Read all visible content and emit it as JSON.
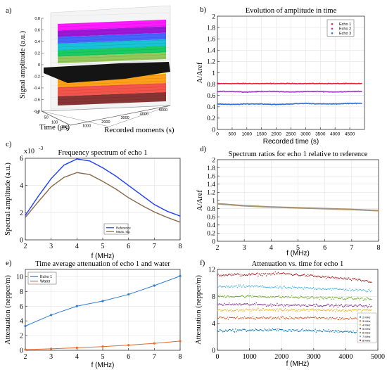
{
  "chart_data": [
    {
      "panel": "a)",
      "type": "surface",
      "title": "",
      "xlabel": "Recorded moments (s)",
      "ylabel": "Time (μs)",
      "zlabel": "Signal amplitude (a.u.)",
      "x_ticks": [
        0,
        1000,
        2000,
        3000,
        4000,
        5000
      ],
      "y_ticks": [
        0,
        50,
        100,
        150
      ],
      "z_ticks": [
        -0.8,
        -0.6,
        -0.4,
        -0.2,
        0,
        0.2,
        0.4,
        0.6,
        0.8
      ],
      "zlim": [
        -0.8,
        0.8
      ],
      "colors": [
        "#ff00ff",
        "#9400d3",
        "#3355ff",
        "#00bcd4",
        "#00c853",
        "#8bc34a",
        "#ffeb3b",
        "#ff9800",
        "#f44336",
        "#7b1f1f"
      ]
    },
    {
      "panel": "b)",
      "type": "scatter",
      "title": "Evolution of amplitude in time",
      "xlabel": "Recorded time (s)",
      "ylabel": "A/Aref",
      "xlim": [
        0,
        5000
      ],
      "ylim": [
        0,
        2
      ],
      "x_ticks": [
        0,
        500,
        1000,
        1500,
        2000,
        2500,
        3000,
        3500,
        4000,
        4500
      ],
      "y_ticks": [
        0,
        0.2,
        0.4,
        0.6,
        0.8,
        1,
        1.2,
        1.4,
        1.6,
        1.8,
        2
      ],
      "legend_position": "top-right",
      "series": [
        {
          "name": "Echo 1",
          "color": "#e8213a",
          "x": [
            0,
            500,
            1000,
            1500,
            2000,
            2500,
            3000,
            3500,
            4000,
            4500,
            4900
          ],
          "y": [
            0.81,
            0.81,
            0.81,
            0.81,
            0.81,
            0.81,
            0.81,
            0.81,
            0.81,
            0.81,
            0.81
          ]
        },
        {
          "name": "Echo 2",
          "color": "#9c3cbf",
          "x": [
            0,
            500,
            1000,
            1500,
            2000,
            2500,
            3000,
            3500,
            4000,
            4500,
            4900
          ],
          "y": [
            0.67,
            0.67,
            0.66,
            0.67,
            0.67,
            0.66,
            0.67,
            0.67,
            0.66,
            0.67,
            0.67
          ]
        },
        {
          "name": "Echo 3",
          "color": "#2d6fe0",
          "x": [
            0,
            500,
            1000,
            1500,
            2000,
            2500,
            3000,
            3500,
            4000,
            4500,
            4900
          ],
          "y": [
            0.45,
            0.44,
            0.45,
            0.45,
            0.44,
            0.45,
            0.46,
            0.45,
            0.45,
            0.46,
            0.46
          ]
        }
      ]
    },
    {
      "panel": "c)",
      "type": "line",
      "title": "Frequency spectrum of echo 1",
      "xlabel": "f (MHz)",
      "ylabel": "Spectral amplitude (a.u.)",
      "exponent_label": "x10",
      "exponent_power": "-3",
      "xlim": [
        2,
        8
      ],
      "ylim": [
        0,
        6
      ],
      "x_ticks": [
        2,
        3,
        4,
        5,
        6,
        7,
        8
      ],
      "y_ticks": [
        0,
        2,
        4,
        6
      ],
      "legend_position": "bottom-right",
      "series": [
        {
          "name": "Reference",
          "color": "#1f3fff",
          "x": [
            2,
            2.5,
            3,
            3.5,
            4,
            4.5,
            5,
            5.5,
            6,
            6.5,
            7,
            7.5,
            8
          ],
          "y": [
            1.8,
            3.2,
            4.5,
            5.5,
            5.95,
            5.8,
            5.3,
            4.7,
            4.0,
            3.3,
            2.6,
            2.1,
            1.75
          ]
        },
        {
          "name": "Meas. sig.",
          "color": "#8b6b4b",
          "x": [
            2,
            2.5,
            3,
            3.5,
            4,
            4.5,
            5,
            5.5,
            6,
            6.5,
            7,
            7.5,
            8
          ],
          "y": [
            1.65,
            2.8,
            3.9,
            4.6,
            4.95,
            4.8,
            4.3,
            3.75,
            3.1,
            2.55,
            2.05,
            1.65,
            1.3
          ]
        }
      ]
    },
    {
      "panel": "d)",
      "type": "line",
      "title": "Spectrum ratios for echo 1 relative to reference",
      "xlabel": "f (MHz)",
      "ylabel": "A/Aref",
      "xlim": [
        2,
        8
      ],
      "ylim": [
        0,
        2
      ],
      "x_ticks": [
        2,
        3,
        4,
        5,
        6,
        7,
        8
      ],
      "y_ticks": [
        0,
        0.2,
        0.4,
        0.6,
        0.8,
        1,
        1.2,
        1.4,
        1.6,
        1.8,
        2
      ],
      "series": [
        {
          "name": "",
          "color": "#b08d5a",
          "x": [
            2,
            3,
            4,
            5,
            6,
            7,
            8
          ],
          "y": [
            0.92,
            0.87,
            0.84,
            0.82,
            0.8,
            0.78,
            0.75
          ]
        }
      ]
    },
    {
      "panel": "e)",
      "type": "line",
      "title": "Time average attenuation of echo 1 and water",
      "xlabel": "f (MHz)",
      "ylabel": "Attenuation (nepper/m)",
      "xlim": [
        2,
        8
      ],
      "ylim": [
        0,
        11
      ],
      "x_ticks": [
        2,
        3,
        4,
        5,
        6,
        7,
        8
      ],
      "y_ticks": [
        0,
        2,
        4,
        6,
        8,
        10
      ],
      "legend_position": "top-left",
      "series": [
        {
          "name": "Echo 1",
          "color": "#2f7bd8",
          "x": [
            2,
            3,
            4,
            5,
            6,
            7,
            8
          ],
          "y": [
            3.3,
            4.8,
            6.0,
            6.7,
            7.6,
            8.8,
            10.1
          ]
        },
        {
          "name": "Water",
          "color": "#e86a2a",
          "x": [
            2,
            3,
            4,
            5,
            6,
            7,
            8
          ],
          "y": [
            0.1,
            0.2,
            0.35,
            0.5,
            0.7,
            0.95,
            1.25
          ]
        }
      ]
    },
    {
      "panel": "f)",
      "type": "scatter",
      "title": "Attenuation vs. time for echo 1",
      "xlabel": "f (MHz)",
      "ylabel": "Attenuation (nepper/m)",
      "xlim": [
        0,
        5000
      ],
      "ylim": [
        0,
        12
      ],
      "x_ticks": [
        0,
        1000,
        2000,
        3000,
        4000,
        5000
      ],
      "y_ticks": [
        0,
        4,
        8,
        12
      ],
      "legend_position": "bottom-right",
      "series": [
        {
          "name": "8 MHz",
          "color": "#a31d1d",
          "x": [
            0,
            1000,
            2000,
            3000,
            4000,
            4800
          ],
          "y": [
            11.2,
            11.2,
            11.4,
            11.0,
            10.6,
            10.2
          ]
        },
        {
          "name": "7 MHz",
          "color": "#4db6e8",
          "x": [
            0,
            1000,
            2000,
            3000,
            4000,
            4800
          ],
          "y": [
            9.4,
            9.5,
            9.3,
            9.2,
            9.0,
            8.8
          ]
        },
        {
          "name": "6 MHz",
          "color": "#6aaa2a",
          "x": [
            0,
            1000,
            2000,
            3000,
            4000,
            4800
          ],
          "y": [
            8.0,
            8.0,
            7.9,
            7.8,
            7.7,
            7.6
          ]
        },
        {
          "name": "5 MHz",
          "color": "#7e2f8e",
          "x": [
            0,
            1000,
            2000,
            3000,
            4000,
            4800
          ],
          "y": [
            6.8,
            6.8,
            6.7,
            6.7,
            6.6,
            6.6
          ]
        },
        {
          "name": "4 MHz",
          "color": "#edb120",
          "x": [
            0,
            1000,
            2000,
            3000,
            4000,
            4800
          ],
          "y": [
            5.9,
            6.0,
            6.0,
            6.0,
            5.9,
            6.0
          ]
        },
        {
          "name": "3 MHz",
          "color": "#d95319",
          "x": [
            0,
            1000,
            2000,
            3000,
            4000,
            4800
          ],
          "y": [
            4.8,
            4.8,
            4.8,
            4.8,
            4.7,
            4.7
          ]
        },
        {
          "name": "2 MHz",
          "color": "#0072bd",
          "x": [
            0,
            1000,
            2000,
            3000,
            4000,
            4800
          ],
          "y": [
            2.9,
            3.0,
            3.0,
            2.9,
            2.8,
            2.7
          ]
        }
      ]
    }
  ]
}
